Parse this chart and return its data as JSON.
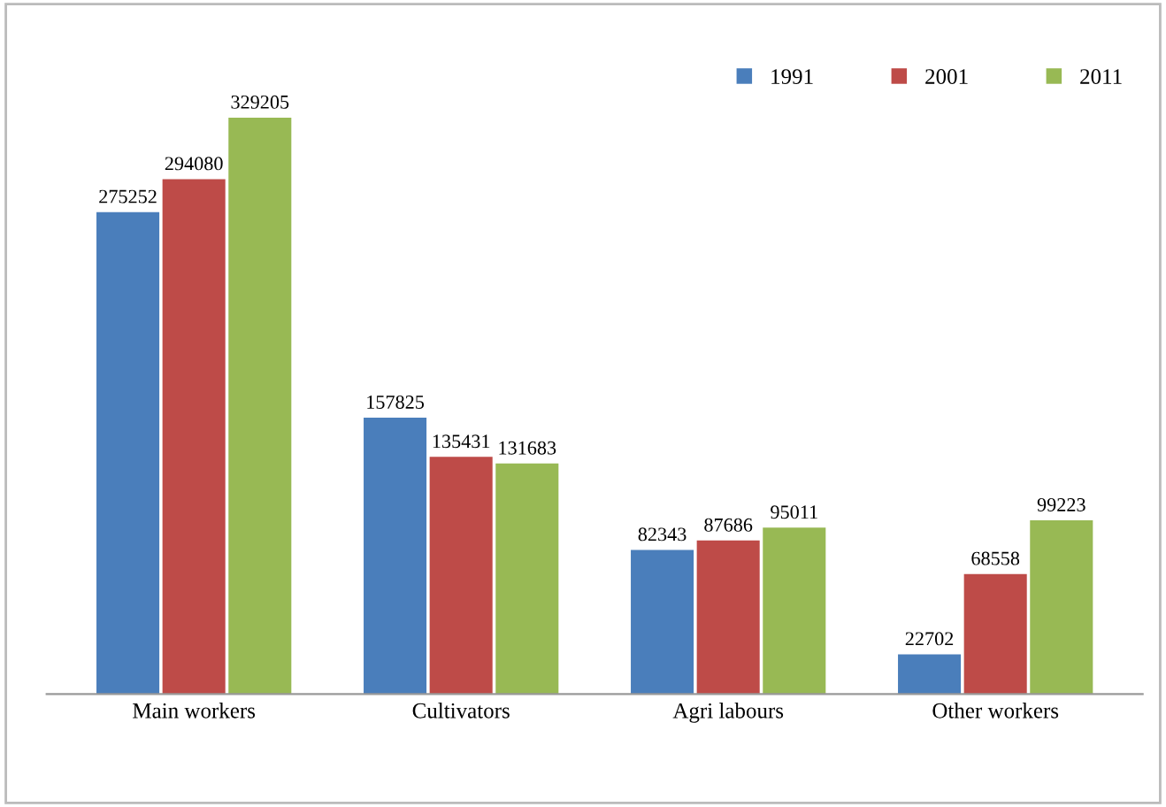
{
  "chart_data": {
    "type": "bar",
    "categories": [
      "Main workers",
      "Cultivators",
      "Agri labours",
      "Other workers"
    ],
    "series": [
      {
        "name": "1991",
        "color": "#4a7ebb",
        "values": [
          275252,
          157825,
          82343,
          22702
        ]
      },
      {
        "name": "2001",
        "color": "#be4b48",
        "values": [
          294080,
          135431,
          87686,
          68558
        ]
      },
      {
        "name": "2011",
        "color": "#98b954",
        "values": [
          329205,
          131683,
          95011,
          99223
        ]
      }
    ],
    "data_labels": true,
    "legend": "top right",
    "grid": false,
    "tick_labels": "x"
  }
}
